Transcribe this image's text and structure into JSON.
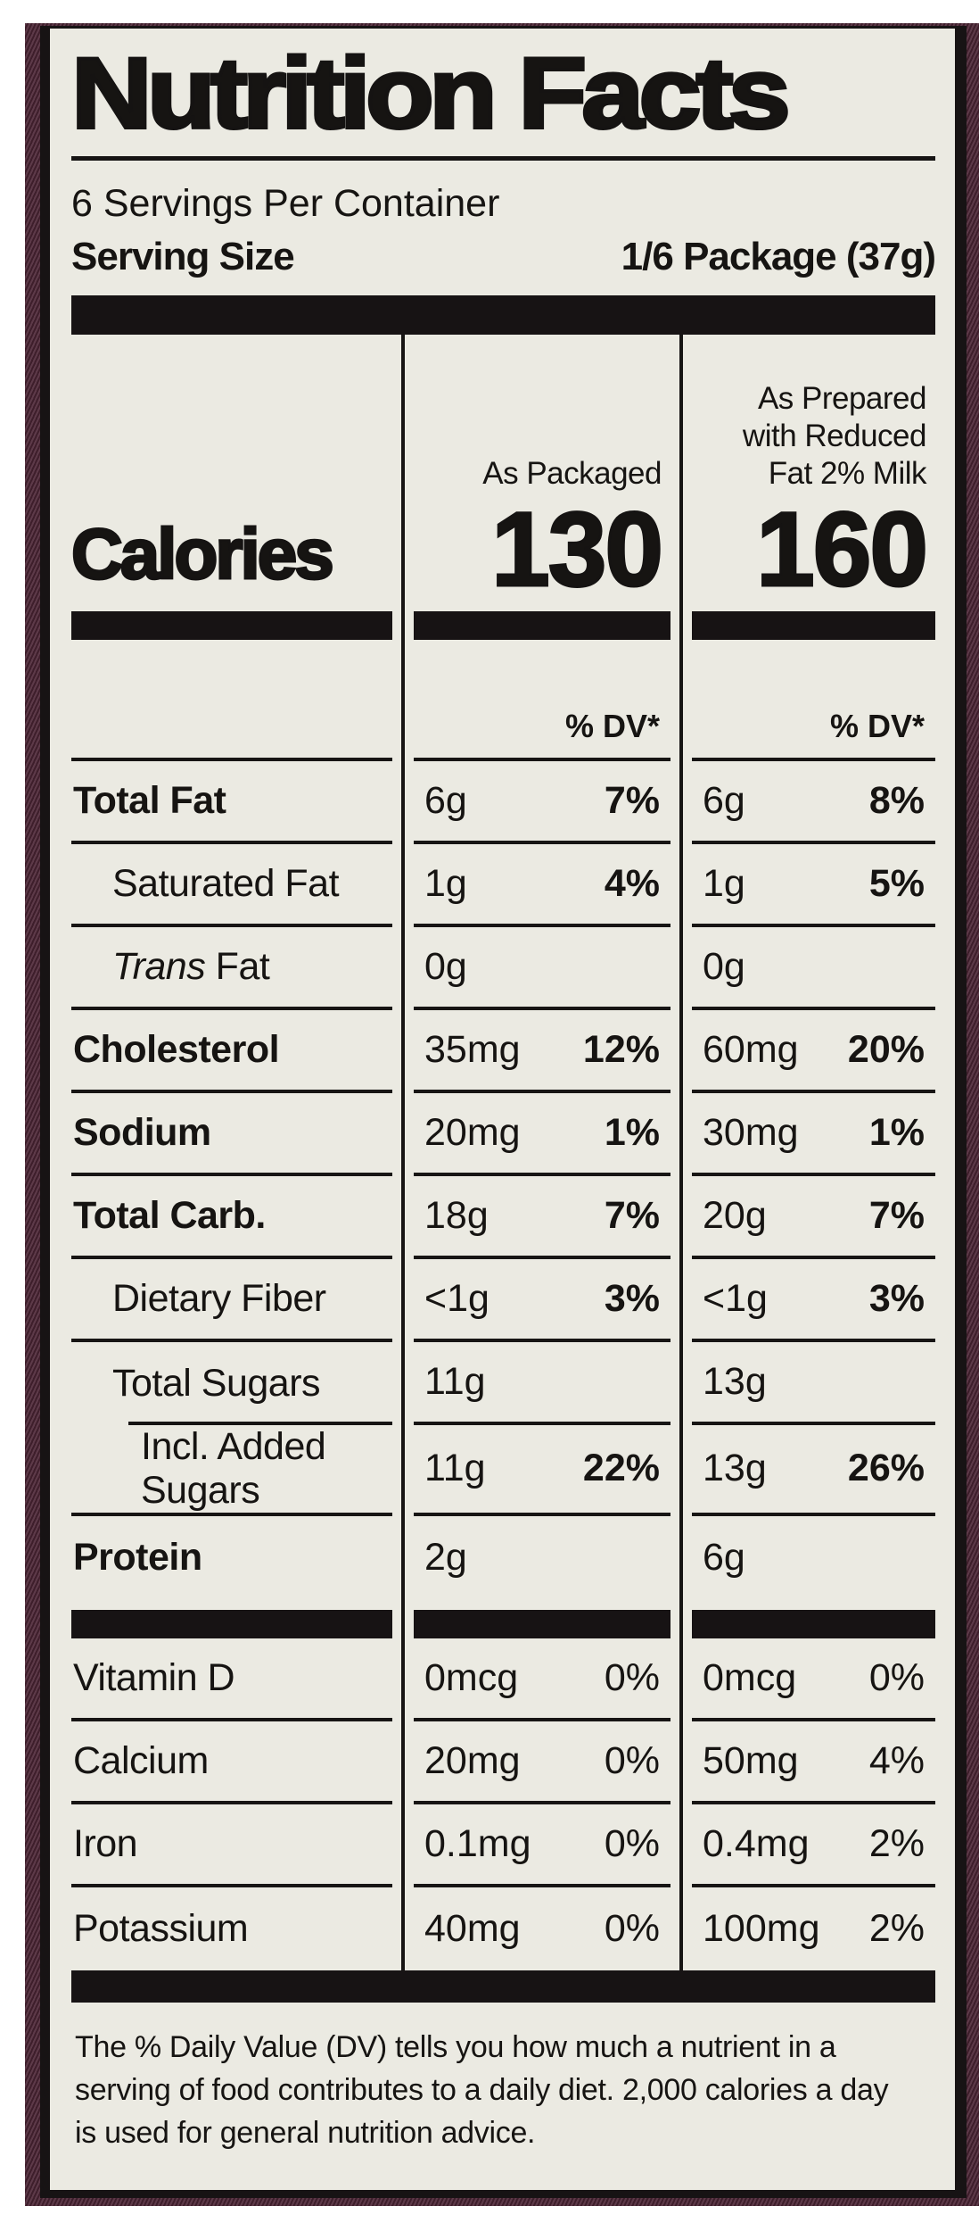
{
  "colors": {
    "sheet_background": "#ebeae2",
    "text": "#161412",
    "package_border": "#4b2434",
    "frame_black": "#171314",
    "page_background": "#ffffff"
  },
  "label": {
    "title": "Nutrition Facts",
    "servings_per_container": "6 Servings Per Container",
    "serving_size": {
      "label": "Serving Size",
      "value": "1/6 Package (37g)"
    },
    "column_headers": {
      "packaged": "As Packaged",
      "prepared_lines": [
        "As Prepared",
        "with Reduced",
        "Fat 2% Milk"
      ]
    },
    "calories": {
      "label": "Calories",
      "packaged": "130",
      "prepared": "160"
    },
    "dv_header": "% DV*",
    "nutrient_rows": [
      {
        "label": "Total Fat",
        "bold": true,
        "indent": 0,
        "packaged_amount": "6g",
        "packaged_dv": "7%",
        "prepared_amount": "6g",
        "prepared_dv": "8%"
      },
      {
        "label": "Saturated Fat",
        "indent": 1,
        "packaged_amount": "1g",
        "packaged_dv": "4%",
        "prepared_amount": "1g",
        "prepared_dv": "5%"
      },
      {
        "label_italic": "Trans",
        "label": " Fat",
        "indent": 1,
        "packaged_amount": "0g",
        "packaged_dv": "",
        "prepared_amount": "0g",
        "prepared_dv": ""
      },
      {
        "label": "Cholesterol",
        "bold": true,
        "indent": 0,
        "packaged_amount": "35mg",
        "packaged_dv": "12%",
        "prepared_amount": "60mg",
        "prepared_dv": "20%"
      },
      {
        "label": "Sodium",
        "bold": true,
        "indent": 0,
        "packaged_amount": "20mg",
        "packaged_dv": "1%",
        "prepared_amount": "30mg",
        "prepared_dv": "1%"
      },
      {
        "label": "Total Carb.",
        "bold": true,
        "indent": 0,
        "packaged_amount": "18g",
        "packaged_dv": "7%",
        "prepared_amount": "20g",
        "prepared_dv": "7%"
      },
      {
        "label": "Dietary Fiber",
        "indent": 1,
        "packaged_amount": "<1g",
        "packaged_dv": "3%",
        "prepared_amount": "<1g",
        "prepared_dv": "3%"
      },
      {
        "label": "Total Sugars",
        "indent": 1,
        "indent_rule_below": true,
        "packaged_amount": "11g",
        "packaged_dv": "",
        "prepared_amount": "13g",
        "prepared_dv": ""
      },
      {
        "label": "Incl. Added Sugars",
        "indent": 2,
        "packaged_amount": "11g",
        "packaged_dv": "22%",
        "prepared_amount": "13g",
        "prepared_dv": "26%"
      },
      {
        "label": "Protein",
        "bold": true,
        "indent": 0,
        "no_rule": true,
        "packaged_amount": "2g",
        "packaged_dv": "",
        "prepared_amount": "6g",
        "prepared_dv": ""
      }
    ],
    "micronutrient_rows": [
      {
        "label": "Vitamin D",
        "packaged_amount": "0mcg",
        "packaged_dv": "0%",
        "prepared_amount": "0mcg",
        "prepared_dv": "0%"
      },
      {
        "label": "Calcium",
        "packaged_amount": "20mg",
        "packaged_dv": "0%",
        "prepared_amount": "50mg",
        "prepared_dv": "4%"
      },
      {
        "label": "Iron",
        "packaged_amount": "0.1mg",
        "packaged_dv": "0%",
        "prepared_amount": "0.4mg",
        "prepared_dv": "2%"
      },
      {
        "label": "Potassium",
        "no_rule": true,
        "packaged_amount": "40mg",
        "packaged_dv": "0%",
        "prepared_amount": "100mg",
        "prepared_dv": "2%"
      }
    ],
    "footnote": "The % Daily Value (DV) tells you how much a nutrient in a serving of food contributes to a daily diet. 2,000 calories a day is used for general nutrition advice."
  }
}
